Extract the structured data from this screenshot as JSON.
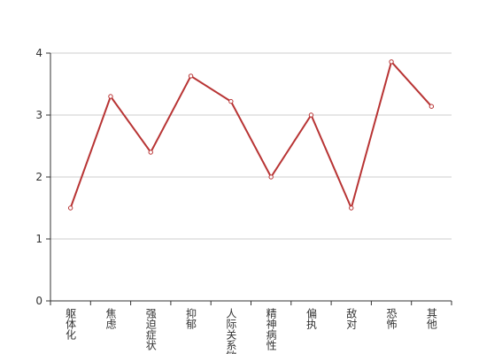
{
  "chart_data": {
    "type": "line",
    "categories": [
      "躯体化",
      "焦虑",
      "强迫症状",
      "抑郁",
      "人际关系敏感",
      "精神病性",
      "偏执",
      "敌对",
      "恐怖",
      "其他"
    ],
    "values": [
      1.5,
      3.3,
      2.4,
      3.63,
      3.22,
      2.0,
      3.0,
      1.5,
      3.86,
      3.14
    ],
    "color": "#b83434",
    "ylim": [
      0,
      4
    ],
    "yticks": [
      0,
      1,
      2,
      3,
      4
    ],
    "grid": true
  }
}
